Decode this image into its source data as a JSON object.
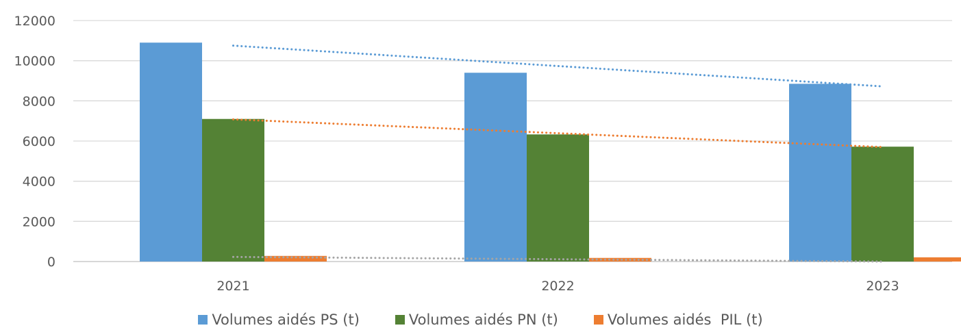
{
  "chart_data": {
    "type": "bar",
    "categories": [
      "2021",
      "2022",
      "2023"
    ],
    "series": [
      {
        "name": "Volumes aidés PS (t)",
        "values": [
          10900,
          9400,
          8850
        ],
        "color": "#5b9bd5"
      },
      {
        "name": "Volumes aidés PN (t)",
        "values": [
          7100,
          6330,
          5720
        ],
        "color": "#548235"
      },
      {
        "name": "Volumes aidés  PIL (t)",
        "values": [
          280,
          180,
          210
        ],
        "color": "#ed7d31"
      }
    ],
    "trendlines": [
      {
        "series": "Volumes aidés PS (t)",
        "start": 10750,
        "end": 8720,
        "color": "#5b9bd5",
        "style": "dotted"
      },
      {
        "series": "Volumes aidés PN (t)",
        "start": 7080,
        "end": 5700,
        "color": "#ed7d31",
        "style": "dotted"
      },
      {
        "series": "Volumes aidés  PIL (t)",
        "start": 230,
        "end": 0,
        "color": "#a5a5a5",
        "style": "dotted"
      }
    ],
    "y_ticks": [
      "0",
      "2000",
      "4000",
      "6000",
      "8000",
      "10000",
      "12000"
    ],
    "ylim": [
      0,
      12000
    ],
    "grid": true,
    "legend_position": "bottom",
    "title": "",
    "xlabel": "",
    "ylabel": ""
  }
}
